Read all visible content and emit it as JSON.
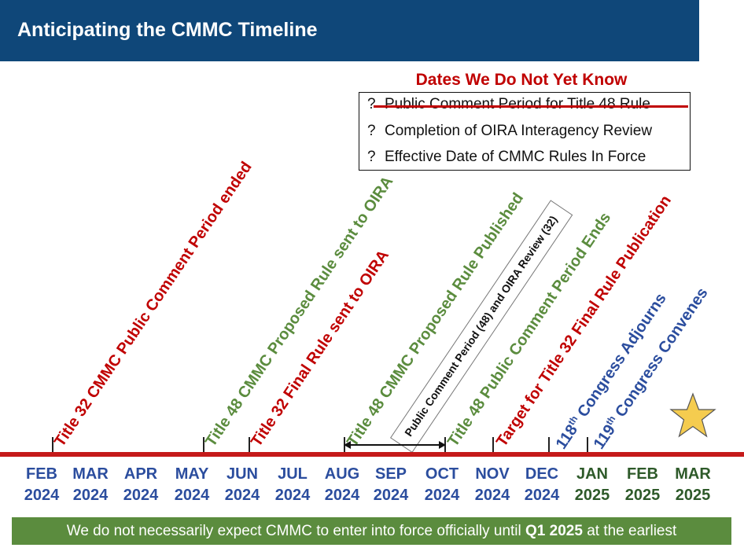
{
  "header": {
    "title": "Anticipating the CMMC Timeline"
  },
  "unknowns": {
    "title": "Dates We Do Not Yet Know",
    "items": [
      {
        "mark": "?",
        "text": "Public Comment Period for Title 48 Rule"
      },
      {
        "mark": "?",
        "text": "Completion of OIRA Interagency Review"
      },
      {
        "mark": "?",
        "text": "Effective Date of CMMC Rules In Force"
      }
    ]
  },
  "events": [
    {
      "text": "Title 32 CMMC Public Comment Period ended",
      "color": "#c00000"
    },
    {
      "text": "Title 48 CMMC Proposed Rule sent to OIRA",
      "color": "#5b8c3e"
    },
    {
      "text": "Title 32 Final Rule sent to OIRA",
      "color": "#c00000"
    },
    {
      "text": "Title 48 CMMC Proposed Rule Published",
      "color": "#5b8c3e"
    },
    {
      "text": "Title 48 Public Comment Period Ends",
      "color": "#5b8c3e"
    },
    {
      "text": "Target for Title 32 Final Rule Publication",
      "color": "#c00000"
    },
    {
      "pre": "118",
      "sup": "th",
      "post": " Congress Adjourns",
      "color": "#2b4d9e"
    },
    {
      "pre": "119",
      "sup": "th",
      "post": " Congress Convenes",
      "color": "#2b4d9e"
    }
  ],
  "comment_box": {
    "text": "Public Comment Period (48) and OIRA Review (32)"
  },
  "months": [
    {
      "month": "FEB",
      "year": "2024",
      "color": "#2b4d9e"
    },
    {
      "month": "MAR",
      "year": "2024",
      "color": "#2b4d9e"
    },
    {
      "month": "APR",
      "year": "2024",
      "color": "#2b4d9e"
    },
    {
      "month": "MAY",
      "year": "2024",
      "color": "#2b4d9e"
    },
    {
      "month": "JUN",
      "year": "2024",
      "color": "#2b4d9e"
    },
    {
      "month": "JUL",
      "year": "2024",
      "color": "#2b4d9e"
    },
    {
      "month": "AUG",
      "year": "2024",
      "color": "#2b4d9e"
    },
    {
      "month": "SEP",
      "year": "2024",
      "color": "#2b4d9e"
    },
    {
      "month": "OCT",
      "year": "2024",
      "color": "#2b4d9e"
    },
    {
      "month": "NOV",
      "year": "2024",
      "color": "#2b4d9e"
    },
    {
      "month": "DEC",
      "year": "2024",
      "color": "#2b4d9e"
    },
    {
      "month": "JAN",
      "year": "2025",
      "color": "#2e5a2a"
    },
    {
      "month": "FEB",
      "year": "2025",
      "color": "#2e5a2a"
    },
    {
      "month": "MAR",
      "year": "2025",
      "color": "#2e5a2a"
    }
  ],
  "footer": {
    "text_before": "We do not necessarily expect CMMC to enter into force officially until ",
    "emphasis": "Q1 2025",
    "text_after": " at the earliest"
  },
  "colors": {
    "header_bg": "#0f4779",
    "timeline": "#c51a1a",
    "footer_bg": "#5b8c3e",
    "star": "#f5cc4f"
  }
}
